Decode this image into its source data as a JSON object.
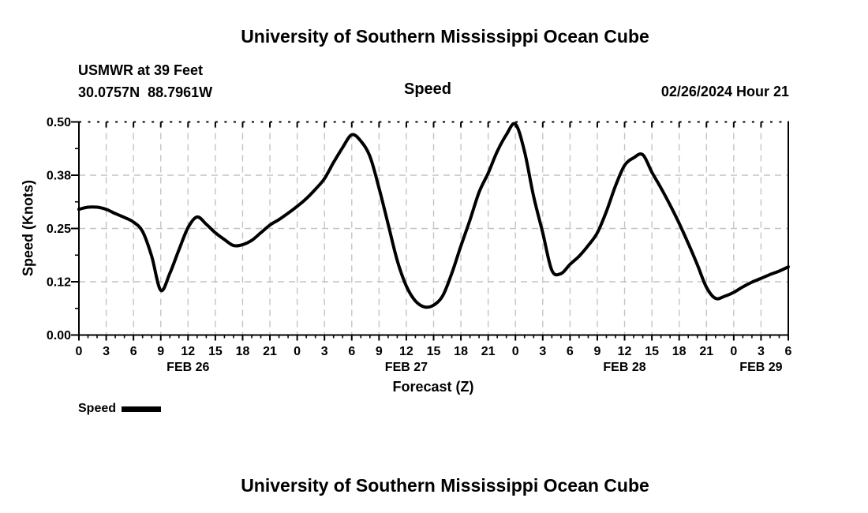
{
  "header": {
    "title": "University of Southern Mississippi Ocean Cube",
    "station": "USMWR at 39 Feet",
    "coords": "30.0757N  88.7961W",
    "panel_title": "Speed",
    "datetime": "02/26/2024 Hour 21"
  },
  "footer": {
    "title": "University of Southern Mississippi Ocean Cube"
  },
  "legend": {
    "label": "Speed",
    "swatch_color": "#000000"
  },
  "chart_data": {
    "type": "line",
    "title": "Speed",
    "xlabel": "Forecast (Z)",
    "ylabel": "Speed (Knots)",
    "xlim_hours": [
      0,
      78
    ],
    "ylim": [
      0,
      0.5
    ],
    "grid": true,
    "legend_position": "bottom-left",
    "line_color": "#000000",
    "line_width": 4,
    "grid_color": "#c4c4c4",
    "x_start_hour": 0,
    "x_step_hours": 1,
    "series": [
      {
        "name": "Speed",
        "values": [
          0.295,
          0.3,
          0.3,
          0.295,
          0.285,
          0.276,
          0.265,
          0.243,
          0.185,
          0.105,
          0.145,
          0.2,
          0.252,
          0.277,
          0.26,
          0.24,
          0.224,
          0.21,
          0.212,
          0.222,
          0.24,
          0.258,
          0.271,
          0.286,
          0.302,
          0.32,
          0.342,
          0.367,
          0.405,
          0.44,
          0.47,
          0.455,
          0.419,
          0.345,
          0.26,
          0.175,
          0.115,
          0.08,
          0.066,
          0.07,
          0.092,
          0.145,
          0.209,
          0.27,
          0.335,
          0.38,
          0.431,
          0.47,
          0.495,
          0.43,
          0.325,
          0.24,
          0.152,
          0.144,
          0.166,
          0.185,
          0.21,
          0.24,
          0.29,
          0.35,
          0.398,
          0.416,
          0.423,
          0.382,
          0.345,
          0.305,
          0.262,
          0.215,
          0.165,
          0.112,
          0.086,
          0.091,
          0.1,
          0.113,
          0.124,
          0.133,
          0.142,
          0.15,
          0.16
        ]
      }
    ],
    "x_major_ticks": [
      {
        "hour": 0,
        "label": "0"
      },
      {
        "hour": 3,
        "label": "3"
      },
      {
        "hour": 6,
        "label": "6"
      },
      {
        "hour": 9,
        "label": "9"
      },
      {
        "hour": 12,
        "label": "12"
      },
      {
        "hour": 15,
        "label": "15"
      },
      {
        "hour": 18,
        "label": "18"
      },
      {
        "hour": 21,
        "label": "21"
      },
      {
        "hour": 24,
        "label": "0"
      },
      {
        "hour": 27,
        "label": "3"
      },
      {
        "hour": 30,
        "label": "6"
      },
      {
        "hour": 33,
        "label": "9"
      },
      {
        "hour": 36,
        "label": "12"
      },
      {
        "hour": 39,
        "label": "15"
      },
      {
        "hour": 42,
        "label": "18"
      },
      {
        "hour": 45,
        "label": "21"
      },
      {
        "hour": 48,
        "label": "0"
      },
      {
        "hour": 51,
        "label": "3"
      },
      {
        "hour": 54,
        "label": "6"
      },
      {
        "hour": 57,
        "label": "9"
      },
      {
        "hour": 60,
        "label": "12"
      },
      {
        "hour": 63,
        "label": "15"
      },
      {
        "hour": 66,
        "label": "18"
      },
      {
        "hour": 69,
        "label": "21"
      },
      {
        "hour": 72,
        "label": "0"
      },
      {
        "hour": 75,
        "label": "3"
      },
      {
        "hour": 78,
        "label": "6"
      }
    ],
    "day_labels": [
      {
        "hour": 12,
        "label": "FEB 26"
      },
      {
        "hour": 36,
        "label": "FEB 27"
      },
      {
        "hour": 60,
        "label": "FEB 28"
      },
      {
        "hour": 75,
        "label": "FEB 29"
      }
    ],
    "y_ticks": [
      {
        "value": 0.0,
        "label": "0.00"
      },
      {
        "value": 0.125,
        "label": "0.12"
      },
      {
        "value": 0.25,
        "label": "0.25"
      },
      {
        "value": 0.375,
        "label": "0.38"
      },
      {
        "value": 0.5,
        "label": "0.50"
      }
    ],
    "y_minor_ticks": [
      0.0625,
      0.1875,
      0.3125,
      0.4375
    ]
  }
}
